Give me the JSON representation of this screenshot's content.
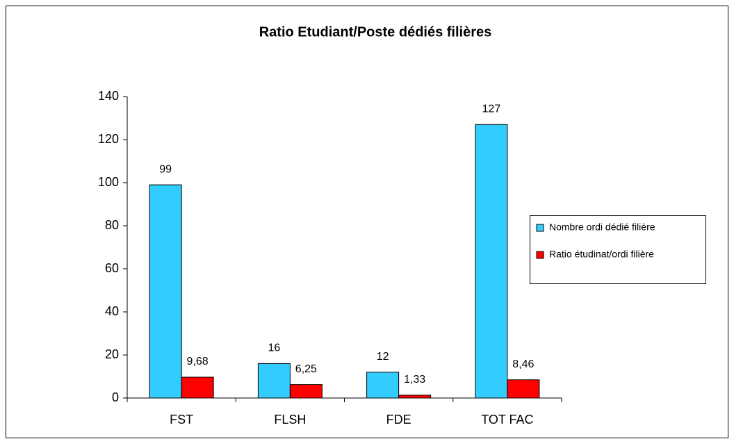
{
  "chart_data": {
    "type": "bar",
    "title": "Ratio Etudiant/Poste dédiés filières",
    "categories": [
      "FST",
      "FLSH",
      "FDE",
      "TOT FAC"
    ],
    "series": [
      {
        "name": "Nombre ordi dédié filière",
        "color": "#33ccff",
        "values": [
          99,
          16,
          12,
          127
        ]
      },
      {
        "name": "Ratio étudinat/ordi filière",
        "color": "#ff0000",
        "values": [
          9.68,
          6.25,
          1.33,
          8.46
        ],
        "value_labels": [
          "9,68",
          "6,25",
          "1,33",
          "8,46"
        ]
      }
    ],
    "ylim": [
      0,
      140
    ],
    "yticks": [
      0,
      20,
      40,
      60,
      80,
      100,
      120,
      140
    ],
    "legend": "right"
  }
}
